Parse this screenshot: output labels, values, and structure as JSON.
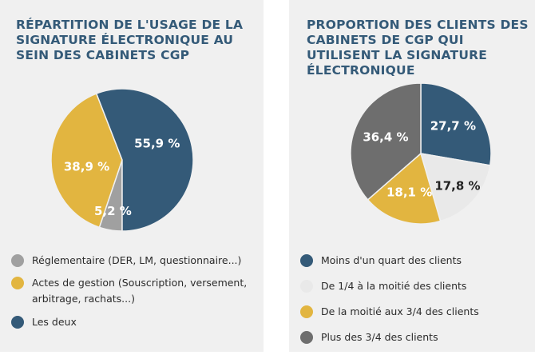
{
  "chart_data": [
    {
      "type": "pie",
      "title": "RÉPARTITION DE L'USAGE DE LA SIGNATURE ÉLECTRONIQUE AU SEIN DES CABINETS CGP",
      "slices": [
        {
          "label": "Réglementaire (DER, LM, questionnaire...)",
          "value": 5.2,
          "display": "5,2 %",
          "color": "#a0a0a0",
          "text_color": "#ffffff"
        },
        {
          "label": "Actes de gestion (Souscription, versement, arbitrage, rachats...)",
          "value": 38.9,
          "display": "38,9 %",
          "color": "#e2b540",
          "text_color": "#ffffff"
        },
        {
          "label": "Les deux",
          "value": 55.9,
          "display": "55,9 %",
          "color": "#345a78",
          "text_color": "#ffffff"
        }
      ],
      "legend_position": "bottom"
    },
    {
      "type": "pie",
      "title": "PROPORTION DES CLIENTS DES CABINETS DE CGP QUI UTILISENT LA SIGNATURE ÉLECTRONIQUE",
      "slices": [
        {
          "label": "Moins d'un quart des clients",
          "value": 27.7,
          "display": "27,7 %",
          "color": "#345a78",
          "text_color": "#ffffff"
        },
        {
          "label": "De 1/4 à la moitié des clients",
          "value": 17.8,
          "display": "17,8 %",
          "color": "#e9e9e9",
          "text_color": "#222222"
        },
        {
          "label": "De la moitié aux 3/4 des clients",
          "value": 18.1,
          "display": "18,1 %",
          "color": "#e2b540",
          "text_color": "#ffffff"
        },
        {
          "label": "Plus des 3/4 des clients",
          "value": 36.4,
          "display": "36,4 %",
          "color": "#6e6e6e",
          "text_color": "#ffffff"
        }
      ],
      "legend_position": "bottom"
    }
  ]
}
